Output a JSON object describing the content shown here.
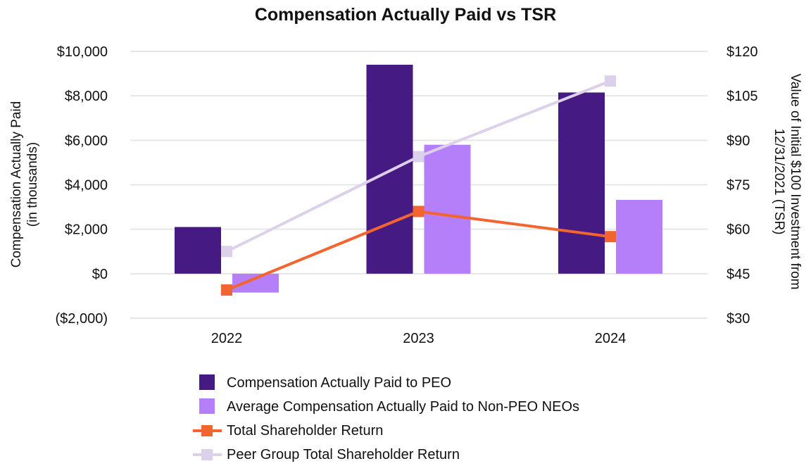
{
  "chart_data": {
    "type": "bar",
    "title": "Compensation Actually Paid vs TSR",
    "categories": [
      "2022",
      "2023",
      "2024"
    ],
    "y_left": {
      "label_lines": [
        "Compensation Actually Paid",
        "(in thousands)"
      ],
      "range": [
        -2000,
        10000
      ],
      "ticks": [
        -2000,
        0,
        2000,
        4000,
        6000,
        8000,
        10000
      ],
      "tick_labels": [
        "($2,000)",
        "$0",
        "$2,000",
        "$4,000",
        "$6,000",
        "$8,000",
        "$10,000"
      ]
    },
    "y_right": {
      "label_lines": [
        "Value of Initial $100 Investment from",
        "12/31/2021 (TSR)"
      ],
      "range": [
        30,
        120
      ],
      "ticks": [
        30,
        45,
        60,
        75,
        90,
        105,
        120
      ],
      "tick_labels": [
        "$30",
        "$45",
        "$60",
        "$75",
        "$90",
        "$105",
        "$120"
      ]
    },
    "bar_series": [
      {
        "name": "Compensation Actually Paid to PEO",
        "color": "#451a82",
        "values": [
          2100,
          9400,
          8150
        ]
      },
      {
        "name": "Average Compensation Actually Paid to Non-PEO NEOs",
        "color": "#b67ffa",
        "values": [
          -850,
          5800,
          3320
        ]
      }
    ],
    "line_series": [
      {
        "name": "Total Shareholder Return",
        "color": "#f26430",
        "axis": "right",
        "values": [
          39.5,
          66,
          57.5
        ]
      },
      {
        "name": "Peer Group Total Shareholder Return",
        "color": "#ddd0ea",
        "axis": "right",
        "values": [
          52.5,
          84.5,
          110
        ]
      }
    ],
    "grid": true,
    "legend_position": "bottom"
  }
}
